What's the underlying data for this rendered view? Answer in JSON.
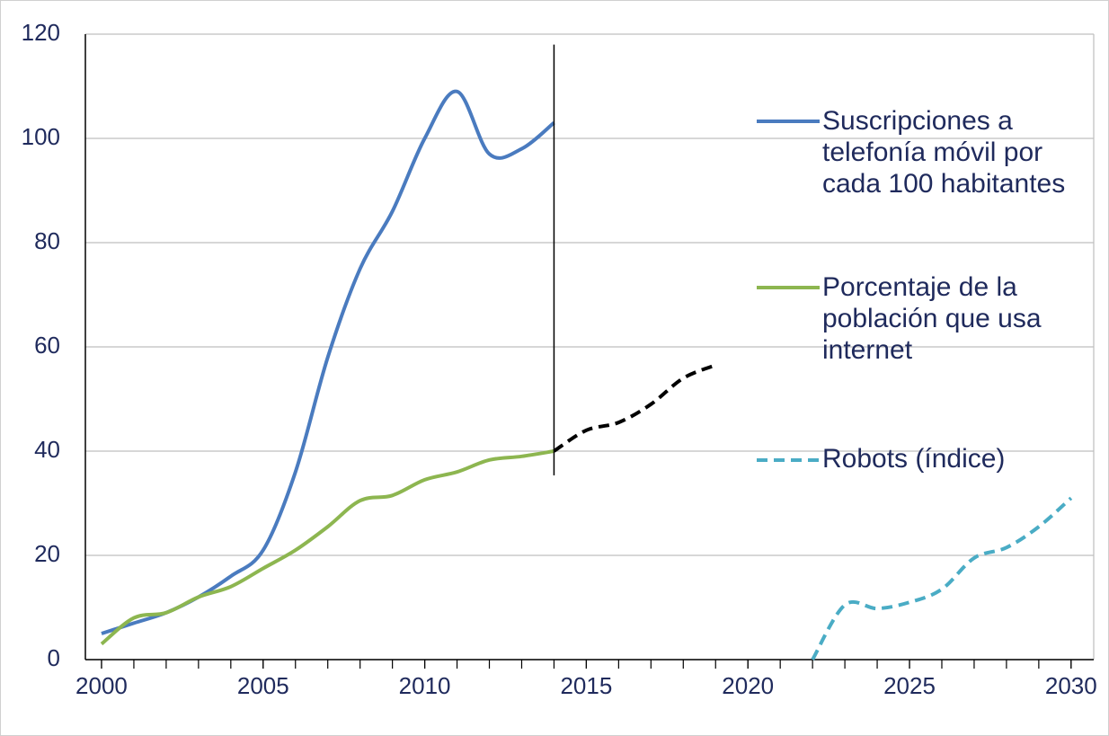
{
  "chart_data": {
    "type": "line",
    "xlim": [
      1999.5,
      2030.7
    ],
    "xticks": [
      2000,
      2005,
      2010,
      2015,
      2020,
      2025,
      2030
    ],
    "ylim": [
      0,
      120
    ],
    "yticks": [
      0,
      20,
      40,
      60,
      80,
      100,
      120
    ],
    "grid": true,
    "series": [
      {
        "name": "Suscripciones a telefonía móvil por cada 100 habitantes",
        "color": "#4a7bbf",
        "dashed": false,
        "x": [
          2000,
          2001,
          2002,
          2003,
          2004,
          2005,
          2006,
          2007,
          2008,
          2009,
          2010,
          2011,
          2012,
          2013,
          2014
        ],
        "values": [
          5,
          7,
          9,
          12,
          16,
          21,
          36,
          58,
          75,
          86,
          100,
          109,
          97,
          98,
          103
        ]
      },
      {
        "name": "Porcentaje de la población que usa internet",
        "color": "#8db650",
        "dashed": false,
        "x": [
          2000,
          2001,
          2002,
          2003,
          2004,
          2005,
          2006,
          2007,
          2008,
          2009,
          2010,
          2011,
          2012,
          2013,
          2014
        ],
        "values": [
          3,
          8,
          9,
          12,
          14,
          17.5,
          21,
          25.5,
          30.5,
          31.5,
          34.5,
          36,
          38.3,
          39,
          40
        ]
      },
      {
        "color": "#000000",
        "dashed": true,
        "x": [
          2014,
          2015,
          2016,
          2017,
          2018,
          2019
        ],
        "values": [
          40,
          44,
          45.5,
          49,
          54,
          56.5
        ]
      },
      {
        "name": "Robots  (índice)",
        "color": "#4aacc5",
        "dashed": true,
        "x": [
          2022,
          2023,
          2024,
          2025,
          2026,
          2027,
          2028,
          2029,
          2030
        ],
        "values": [
          0,
          10.5,
          9.8,
          11,
          13.5,
          19.5,
          21.5,
          25.5,
          31
        ]
      }
    ],
    "vline": {
      "x": 2014,
      "from": 40,
      "to": 118
    }
  }
}
